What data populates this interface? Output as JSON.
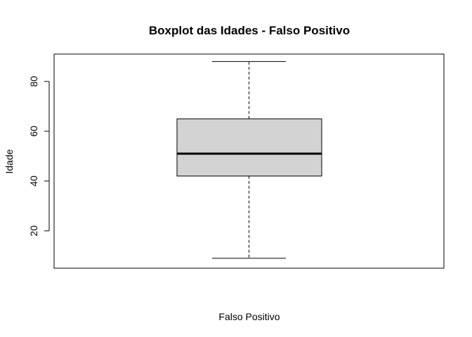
{
  "chart_data": {
    "type": "boxplot",
    "title": "Boxplot das Idades - Falso Positivo",
    "xlabel": "Falso Positivo",
    "ylabel": "Idade",
    "ylim": [
      5,
      91
    ],
    "yticks": [
      20,
      40,
      60,
      80
    ],
    "ytick_labels": [
      "20",
      "40",
      "60",
      "80"
    ],
    "grid": false,
    "box": {
      "min": 9,
      "q1": 42,
      "median": 51,
      "q3": 65,
      "max": 88
    },
    "colors": {
      "box_fill": "#d3d3d3",
      "stroke": "#000000"
    }
  }
}
